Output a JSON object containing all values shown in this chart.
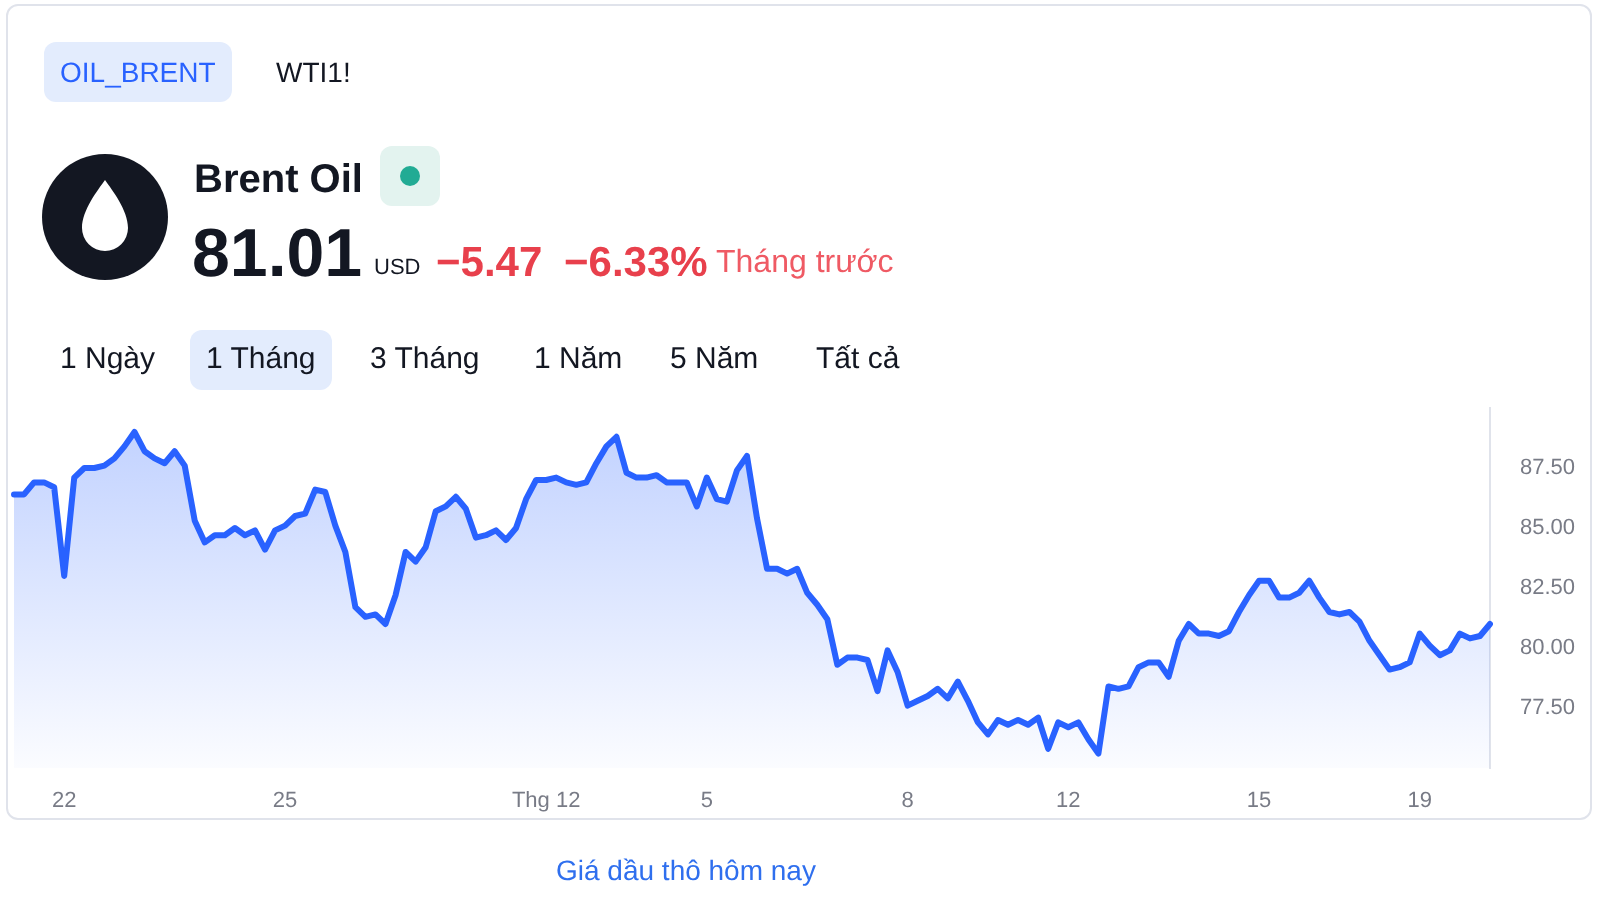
{
  "chart_data": {
    "type": "area",
    "title": "Brent Oil",
    "annotations": [
      "OIL_BRENT",
      "WTI1!",
      "81.01",
      "USD",
      "−5.47",
      "−6.33%",
      "Tháng trước",
      "1 Ngày",
      "1 Tháng",
      "3 Tháng",
      "1 Năm",
      "5 Năm",
      "Tất cả",
      "Giá dầu thô hôm nay"
    ],
    "categories": [
      null,
      null,
      null,
      null,
      null,
      "22",
      null,
      null,
      null,
      null,
      null,
      null,
      null,
      null,
      null,
      null,
      null,
      null,
      null,
      null,
      null,
      null,
      null,
      null,
      null,
      null,
      null,
      "25",
      null,
      null,
      null,
      null,
      null,
      null,
      null,
      null,
      null,
      null,
      null,
      null,
      null,
      null,
      null,
      null,
      null,
      null,
      null,
      null,
      null,
      null,
      null,
      null,
      null,
      "Thg 12",
      null,
      null,
      null,
      null,
      null,
      null,
      null,
      null,
      null,
      null,
      null,
      null,
      null,
      null,
      null,
      "5",
      null,
      null,
      null,
      null,
      null,
      null,
      null,
      null,
      null,
      null,
      null,
      null,
      null,
      null,
      null,
      null,
      null,
      null,
      null,
      "8",
      null,
      null,
      null,
      null,
      null,
      null,
      null,
      null,
      null,
      null,
      null,
      null,
      null,
      null,
      null,
      "12",
      null,
      null,
      null,
      null,
      null,
      null,
      null,
      null,
      null,
      null,
      null,
      null,
      null,
      null,
      null,
      null,
      null,
      null,
      "15",
      null,
      null,
      null,
      null,
      null,
      null,
      null,
      null,
      null,
      null,
      null,
      null,
      null,
      null,
      null,
      "19",
      null,
      null,
      null,
      null,
      null,
      null,
      null
    ],
    "series": [
      {
        "color": "#2962ff",
        "values": [
          86.4,
          86.4,
          86.9,
          86.9,
          86.7,
          83.0,
          87.1,
          87.5,
          87.5,
          87.6,
          87.9,
          88.4,
          89.0,
          88.2,
          87.9,
          87.7,
          88.2,
          87.6,
          85.3,
          84.4,
          84.7,
          84.7,
          85.0,
          84.7,
          84.9,
          84.1,
          84.9,
          85.1,
          85.5,
          85.6,
          86.6,
          86.5,
          85.1,
          84.0,
          81.7,
          81.3,
          81.4,
          81.0,
          82.2,
          84.0,
          83.6,
          84.2,
          85.7,
          85.9,
          86.3,
          85.8,
          84.6,
          84.7,
          84.9,
          84.5,
          85.0,
          86.2,
          87.0,
          87.0,
          87.1,
          86.9,
          86.8,
          86.9,
          87.7,
          88.4,
          88.8,
          87.3,
          87.1,
          87.1,
          87.2,
          86.9,
          86.9,
          86.9,
          85.9,
          87.1,
          86.2,
          86.1,
          87.4,
          88.0,
          85.4,
          83.3,
          83.3,
          83.1,
          83.3,
          82.3,
          81.8,
          81.2,
          79.3,
          79.6,
          79.6,
          79.5,
          78.2,
          79.9,
          79.0,
          77.6,
          77.8,
          78.0,
          78.3,
          77.9,
          78.6,
          77.8,
          76.9,
          76.4,
          77.0,
          76.8,
          77.0,
          76.8,
          77.1,
          75.8,
          76.9,
          76.7,
          76.9,
          76.2,
          75.6,
          78.4,
          78.3,
          78.4,
          79.2,
          79.4,
          79.4,
          78.8,
          80.3,
          81.0,
          80.6,
          80.6,
          80.5,
          80.7,
          81.5,
          82.2,
          82.8,
          82.8,
          82.1,
          82.1,
          82.3,
          82.8,
          82.1,
          81.5,
          81.4,
          81.5,
          81.1,
          80.3,
          79.7,
          79.1,
          79.2,
          79.4,
          80.6,
          80.1,
          79.7,
          79.9,
          80.6,
          80.4,
          80.5,
          81.0
        ]
      }
    ],
    "ylim": [
      75,
      90
    ],
    "yticks": [
      {
        "value": 77.5,
        "label": "77.50"
      },
      {
        "value": 80,
        "label": "80.00"
      },
      {
        "value": 82.5,
        "label": "82.50"
      },
      {
        "value": 85,
        "label": "85.00"
      },
      {
        "value": 87.5,
        "label": "87.50"
      }
    ]
  }
}
